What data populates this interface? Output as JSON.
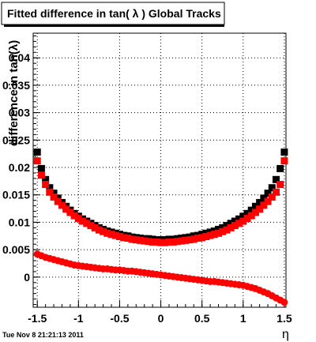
{
  "title": "Fitted difference in tan( λ )  Global Tracks",
  "timestamp": "Tue Nov  8 21:21:13 2011",
  "chart_data": {
    "type": "scatter",
    "xlabel": "η",
    "ylabel": "difference in tan(λ)",
    "xlim": [
      -1.55,
      1.52
    ],
    "ylim": [
      -0.0055,
      0.0445
    ],
    "x_ticks": [
      "-1.5",
      "-1",
      "-0.5",
      "0",
      "0.5",
      "1",
      "1.5"
    ],
    "y_ticks": [
      "0",
      "0.005",
      "0.01",
      "0.015",
      "0.02",
      "0.025",
      "0.03",
      "0.035",
      "0.04"
    ],
    "grid": true,
    "series": [
      {
        "color": "#000000",
        "marker": "square",
        "x": [
          -1.5,
          -1.45,
          -1.4,
          -1.35,
          -1.3,
          -1.25,
          -1.2,
          -1.15,
          -1.1,
          -1.05,
          -1,
          -0.95,
          -0.9,
          -0.85,
          -0.8,
          -0.75,
          -0.7,
          -0.65,
          -0.6,
          -0.55,
          -0.5,
          -0.45,
          -0.4,
          -0.35,
          -0.3,
          -0.25,
          -0.2,
          -0.15,
          -0.1,
          -0.05,
          0,
          0.05,
          0.1,
          0.15,
          0.2,
          0.25,
          0.3,
          0.35,
          0.4,
          0.45,
          0.5,
          0.55,
          0.6,
          0.65,
          0.7,
          0.75,
          0.8,
          0.85,
          0.9,
          0.95,
          1,
          1.05,
          1.1,
          1.15,
          1.2,
          1.25,
          1.3,
          1.35,
          1.4,
          1.45,
          1.5
        ],
        "y": [
          0.0228,
          0.0198,
          0.0178,
          0.0163,
          0.0153,
          0.0144,
          0.0136,
          0.0129,
          0.0122,
          0.0116,
          0.0111,
          0.0106,
          0.0102,
          0.0098,
          0.0094,
          0.009,
          0.0087,
          0.0084,
          0.0082,
          0.008,
          0.0078,
          0.0076,
          0.0075,
          0.0073,
          0.0072,
          0.0071,
          0.007,
          0.007,
          0.0069,
          0.0068,
          0.0068,
          0.0068,
          0.0069,
          0.0069,
          0.007,
          0.0071,
          0.0072,
          0.0073,
          0.0075,
          0.0076,
          0.0078,
          0.008,
          0.0082,
          0.0084,
          0.0087,
          0.009,
          0.0094,
          0.0098,
          0.0102,
          0.0106,
          0.0111,
          0.0116,
          0.0122,
          0.0129,
          0.0136,
          0.0144,
          0.0153,
          0.0163,
          0.0178,
          0.0198,
          0.0228
        ]
      },
      {
        "color": "#ff0000",
        "marker": "square",
        "x": [
          -1.5,
          -1.45,
          -1.4,
          -1.35,
          -1.3,
          -1.25,
          -1.2,
          -1.15,
          -1.1,
          -1.05,
          -1,
          -0.95,
          -0.9,
          -0.85,
          -0.8,
          -0.75,
          -0.7,
          -0.65,
          -0.6,
          -0.55,
          -0.5,
          -0.45,
          -0.4,
          -0.35,
          -0.3,
          -0.25,
          -0.2,
          -0.15,
          -0.1,
          -0.05,
          0,
          0.05,
          0.1,
          0.15,
          0.2,
          0.25,
          0.3,
          0.35,
          0.4,
          0.45,
          0.5,
          0.55,
          0.6,
          0.65,
          0.7,
          0.75,
          0.8,
          0.85,
          0.9,
          0.95,
          1,
          1.05,
          1.1,
          1.15,
          1.2,
          1.25,
          1.3,
          1.35,
          1.4,
          1.45,
          1.5
        ],
        "y": [
          0.0212,
          0.0186,
          0.0169,
          0.0155,
          0.0146,
          0.0138,
          0.0131,
          0.0124,
          0.0118,
          0.0112,
          0.0107,
          0.0102,
          0.0098,
          0.0094,
          0.009,
          0.0086,
          0.0083,
          0.008,
          0.0078,
          0.0076,
          0.0074,
          0.0072,
          0.0071,
          0.0069,
          0.0068,
          0.0067,
          0.0066,
          0.0065,
          0.0064,
          0.0064,
          0.0063,
          0.0063,
          0.0064,
          0.0064,
          0.0065,
          0.0066,
          0.0067,
          0.0068,
          0.0069,
          0.0071,
          0.0072,
          0.0074,
          0.0076,
          0.0078,
          0.008,
          0.0083,
          0.0086,
          0.009,
          0.0094,
          0.0098,
          0.0102,
          0.0107,
          0.0112,
          0.0118,
          0.0124,
          0.0131,
          0.0138,
          0.0146,
          0.0155,
          0.0169,
          0.0212
        ]
      },
      {
        "color": "#ff0000",
        "marker": "circle",
        "x": [
          -1.5,
          -1.45,
          -1.4,
          -1.35,
          -1.3,
          -1.25,
          -1.2,
          -1.15,
          -1.1,
          -1.05,
          -1,
          -0.95,
          -0.9,
          -0.85,
          -0.8,
          -0.75,
          -0.7,
          -0.65,
          -0.6,
          -0.55,
          -0.5,
          -0.45,
          -0.4,
          -0.35,
          -0.3,
          -0.25,
          -0.2,
          -0.15,
          -0.1,
          -0.05,
          0,
          0.05,
          0.1,
          0.15,
          0.2,
          0.25,
          0.3,
          0.35,
          0.4,
          0.45,
          0.5,
          0.55,
          0.6,
          0.65,
          0.7,
          0.75,
          0.8,
          0.85,
          0.9,
          0.95,
          1,
          1.05,
          1.1,
          1.15,
          1.2,
          1.25,
          1.3,
          1.35,
          1.4,
          1.45,
          1.5
        ],
        "y": [
          0.0042,
          0.0039,
          0.0036,
          0.0034,
          0.0032,
          0.003,
          0.0028,
          0.0026,
          0.0024,
          0.0022,
          0.0021,
          0.002,
          0.0019,
          0.0018,
          0.0017,
          0.0016,
          0.0015,
          0.0015,
          0.0014,
          0.0013,
          0.0013,
          0.0012,
          0.0011,
          0.0011,
          0.001,
          0.0009,
          0.0008,
          0.0007,
          0.0006,
          0.0005,
          0.0004,
          0.0003,
          0.0002,
          0.0001,
          0.0,
          -0.0001,
          -0.0002,
          -0.0003,
          -0.0004,
          -0.0005,
          -0.0006,
          -0.0007,
          -0.0008,
          -0.0008,
          -0.0009,
          -0.001,
          -0.0011,
          -0.0012,
          -0.0013,
          -0.0014,
          -0.0015,
          -0.0017,
          -0.0019,
          -0.0021,
          -0.0024,
          -0.0027,
          -0.003,
          -0.0034,
          -0.0038,
          -0.0042,
          -0.0046
        ]
      }
    ]
  }
}
